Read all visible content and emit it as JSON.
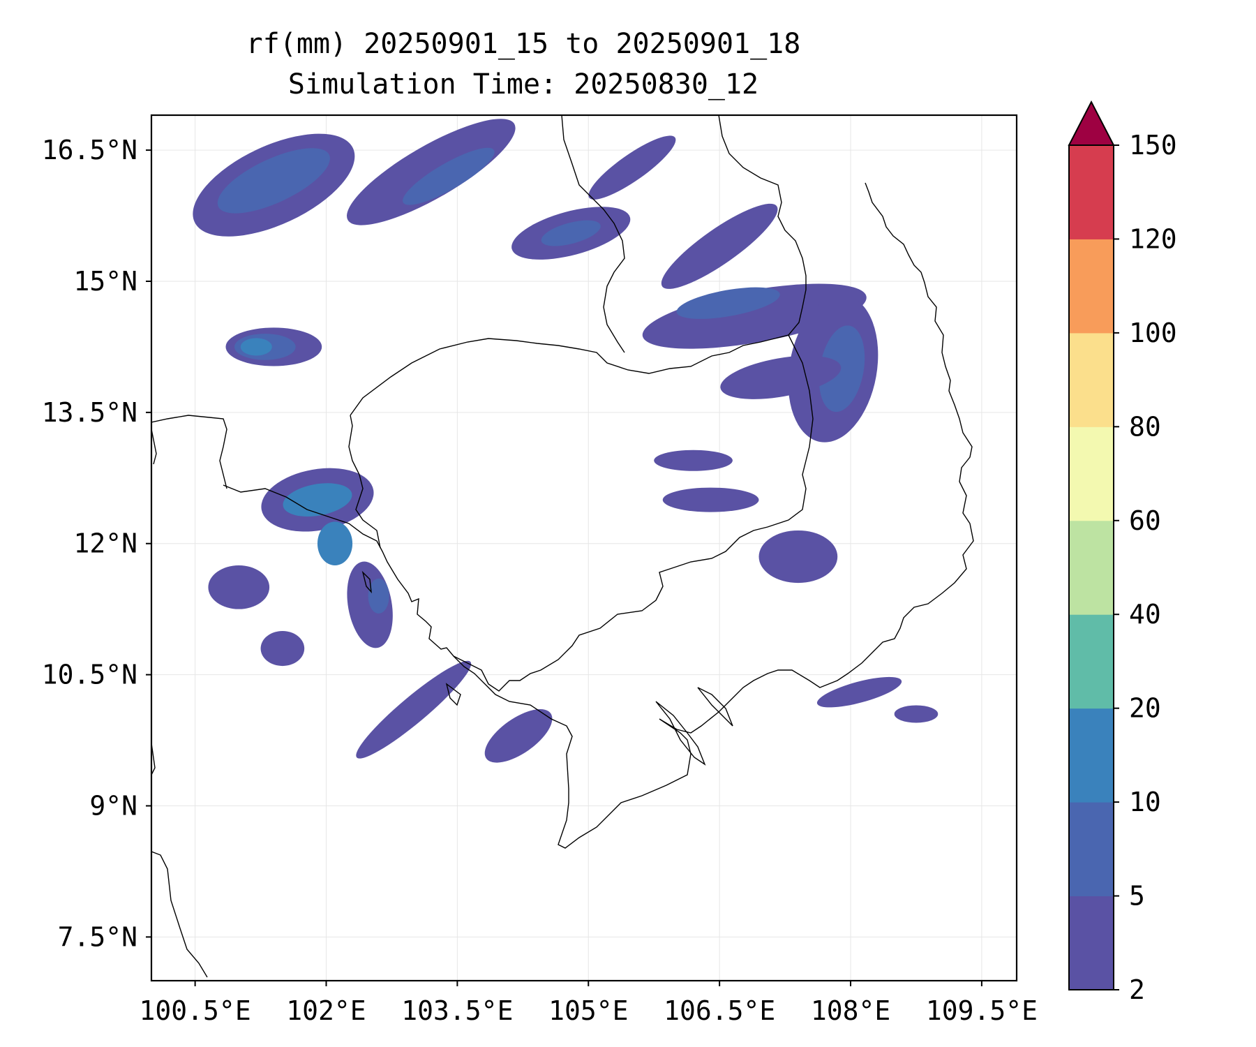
{
  "title": "rf(mm) 20250901_15 to 20250901_18",
  "subtitle": "Simulation Time: 20250830_12",
  "map": {
    "lon_range": [
      100.0,
      109.9
    ],
    "lat_range": [
      7.0,
      16.9
    ],
    "lon_ticks": [
      100.5,
      102,
      103.5,
      105,
      106.5,
      108,
      109.5
    ],
    "lon_tick_labels": [
      "100.5°E",
      "102°E",
      "103.5°E",
      "105°E",
      "106.5°E",
      "108°E",
      "109.5°E"
    ],
    "lat_ticks": [
      16.5,
      15,
      13.5,
      12,
      10.5,
      9,
      7.5
    ],
    "lat_tick_labels": [
      "16.5°N",
      "15°N",
      "13.5°N",
      "12°N",
      "10.5°N",
      "9°N",
      "7.5°N"
    ],
    "grid": true
  },
  "colorbar": {
    "levels": [
      2,
      5,
      10,
      20,
      40,
      60,
      80,
      100,
      120,
      150
    ],
    "labels": [
      "2",
      "5",
      "10",
      "20",
      "40",
      "60",
      "80",
      "100",
      "120",
      "150"
    ],
    "colors": [
      "#5a52a4",
      "#4a66b0",
      "#3a82bc",
      "#60bca8",
      "#bde3a2",
      "#f3f9b0",
      "#fbdf8c",
      "#f89c5a",
      "#d63d4f"
    ],
    "extend_color": "#9e0142",
    "extend": "max"
  },
  "rain_areas": [
    {
      "level": 0,
      "lon": 101.4,
      "lat": 16.1,
      "rx": 1.0,
      "ry": 0.45,
      "rot": -25
    },
    {
      "level": 1,
      "lon": 101.4,
      "lat": 16.15,
      "rx": 0.7,
      "ry": 0.25,
      "rot": -25
    },
    {
      "level": 0,
      "lon": 103.2,
      "lat": 16.25,
      "rx": 1.1,
      "ry": 0.3,
      "rot": -30
    },
    {
      "level": 1,
      "lon": 103.4,
      "lat": 16.2,
      "rx": 0.6,
      "ry": 0.15,
      "rot": -30
    },
    {
      "level": 0,
      "lon": 104.8,
      "lat": 15.55,
      "rx": 0.7,
      "ry": 0.25,
      "rot": -15
    },
    {
      "level": 1,
      "lon": 104.8,
      "lat": 15.55,
      "rx": 0.35,
      "ry": 0.12,
      "rot": -15
    },
    {
      "level": 0,
      "lon": 105.5,
      "lat": 16.3,
      "rx": 0.6,
      "ry": 0.15,
      "rot": -35
    },
    {
      "level": 0,
      "lon": 106.5,
      "lat": 15.4,
      "rx": 0.8,
      "ry": 0.2,
      "rot": -35
    },
    {
      "level": 0,
      "lon": 106.9,
      "lat": 14.6,
      "rx": 1.3,
      "ry": 0.3,
      "rot": -10
    },
    {
      "level": 1,
      "lon": 106.6,
      "lat": 14.75,
      "rx": 0.6,
      "ry": 0.15,
      "rot": -10
    },
    {
      "level": 0,
      "lon": 107.8,
      "lat": 14.0,
      "rx": 0.5,
      "ry": 0.85,
      "rot": 10
    },
    {
      "level": 1,
      "lon": 107.9,
      "lat": 14.0,
      "rx": 0.25,
      "ry": 0.5,
      "rot": 10
    },
    {
      "level": 0,
      "lon": 107.2,
      "lat": 13.9,
      "rx": 0.7,
      "ry": 0.22,
      "rot": -10
    },
    {
      "level": 0,
      "lon": 106.4,
      "lat": 12.5,
      "rx": 0.55,
      "ry": 0.14,
      "rot": 0
    },
    {
      "level": 0,
      "lon": 106.2,
      "lat": 12.95,
      "rx": 0.45,
      "ry": 0.12,
      "rot": 0
    },
    {
      "level": 0,
      "lon": 107.4,
      "lat": 11.85,
      "rx": 0.45,
      "ry": 0.3,
      "rot": 0
    },
    {
      "level": 0,
      "lon": 101.4,
      "lat": 14.25,
      "rx": 0.55,
      "ry": 0.22,
      "rot": 0
    },
    {
      "level": 1,
      "lon": 101.3,
      "lat": 14.25,
      "rx": 0.35,
      "ry": 0.15,
      "rot": 0
    },
    {
      "level": 2,
      "lon": 101.2,
      "lat": 14.25,
      "rx": 0.18,
      "ry": 0.1,
      "rot": 0
    },
    {
      "level": 0,
      "lon": 101.9,
      "lat": 12.5,
      "rx": 0.65,
      "ry": 0.35,
      "rot": -10
    },
    {
      "level": 2,
      "lon": 101.9,
      "lat": 12.5,
      "rx": 0.4,
      "ry": 0.18,
      "rot": -10
    },
    {
      "level": 2,
      "lon": 102.1,
      "lat": 12.0,
      "rx": 0.2,
      "ry": 0.25,
      "rot": 0
    },
    {
      "level": 0,
      "lon": 103.0,
      "lat": 10.1,
      "rx": 0.85,
      "ry": 0.15,
      "rot": -40
    },
    {
      "level": 0,
      "lon": 102.5,
      "lat": 11.3,
      "rx": 0.25,
      "ry": 0.5,
      "rot": -10
    },
    {
      "level": 1,
      "lon": 102.6,
      "lat": 11.4,
      "rx": 0.12,
      "ry": 0.2,
      "rot": 0
    },
    {
      "level": 0,
      "lon": 101.0,
      "lat": 11.5,
      "rx": 0.35,
      "ry": 0.25,
      "rot": 0
    },
    {
      "level": 0,
      "lon": 101.5,
      "lat": 10.8,
      "rx": 0.25,
      "ry": 0.2,
      "rot": 0
    },
    {
      "level": 0,
      "lon": 104.2,
      "lat": 9.8,
      "rx": 0.45,
      "ry": 0.2,
      "rot": -35
    },
    {
      "level": 0,
      "lon": 108.1,
      "lat": 10.3,
      "rx": 0.5,
      "ry": 0.12,
      "rot": -15
    },
    {
      "level": 0,
      "lon": 108.75,
      "lat": 10.05,
      "rx": 0.25,
      "ry": 0.1,
      "rot": 0
    }
  ]
}
